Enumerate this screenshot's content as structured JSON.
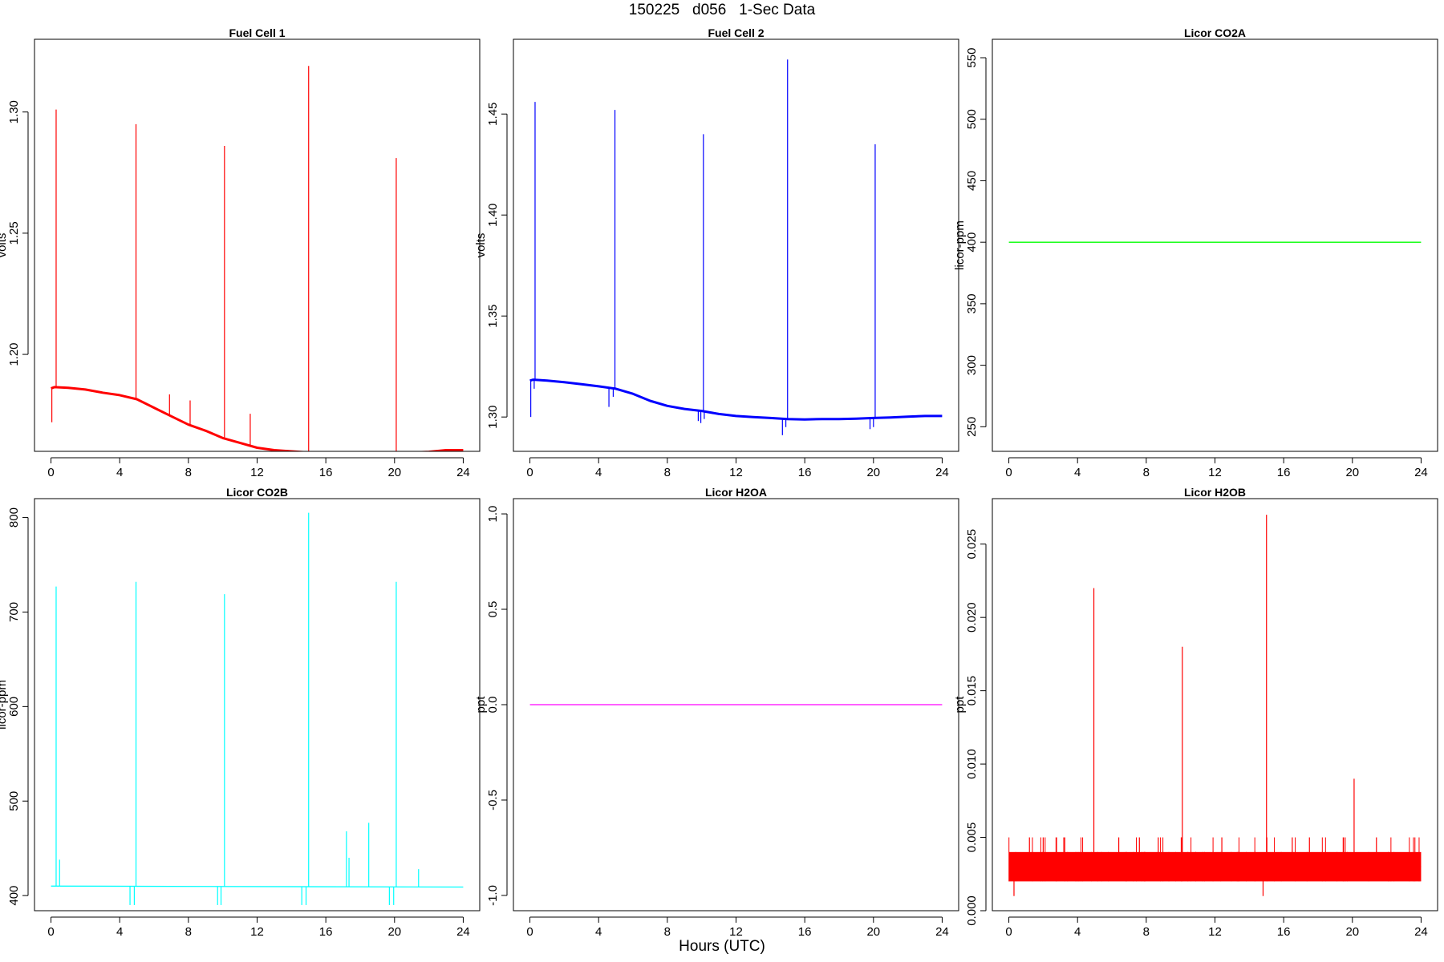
{
  "figure": {
    "title": "150225   d056   1-Sec Data",
    "xlabel": "Hours (UTC)"
  },
  "chart_data": [
    {
      "type": "line",
      "title": "Fuel Cell 1",
      "ylabel": "volts",
      "color": "#ff0000",
      "xlim": [
        -0.96,
        24.96
      ],
      "ylim": [
        1.16,
        1.33
      ],
      "xticks": [
        0,
        4,
        8,
        12,
        16,
        20,
        24
      ],
      "yticks": [
        1.2,
        1.25,
        1.3
      ],
      "ytick_labels": [
        "1.20",
        "1.25",
        "1.30"
      ],
      "baseline": {
        "x": [
          0,
          0.2,
          1,
          2,
          3,
          4,
          5,
          6,
          7,
          8,
          9,
          10,
          11,
          12,
          13,
          14,
          15,
          16,
          17,
          18,
          19,
          20,
          21,
          22,
          23,
          24
        ],
        "y": [
          1.186,
          1.1865,
          1.1862,
          1.1855,
          1.1842,
          1.1832,
          1.1815,
          1.178,
          1.1745,
          1.171,
          1.1685,
          1.1655,
          1.1635,
          1.1615,
          1.1605,
          1.16,
          1.1595,
          1.1595,
          1.1595,
          1.159,
          1.159,
          1.1592,
          1.1595,
          1.1598,
          1.1605,
          1.1605
        ]
      },
      "spikes": [
        {
          "x": 0.3,
          "y": 1.301
        },
        {
          "x": 4.95,
          "y": 1.295
        },
        {
          "x": 6.9,
          "y": 1.1835
        },
        {
          "x": 8.1,
          "y": 1.181
        },
        {
          "x": 10.1,
          "y": 1.286
        },
        {
          "x": 11.6,
          "y": 1.1755
        },
        {
          "x": 15.0,
          "y": 1.319
        },
        {
          "x": 20.1,
          "y": 1.281
        }
      ],
      "dips": [
        {
          "x": 0.05,
          "y": 1.172
        }
      ]
    },
    {
      "type": "line",
      "title": "Fuel Cell 2",
      "ylabel": "volts",
      "color": "#0000ff",
      "xlim": [
        -0.96,
        24.96
      ],
      "ylim": [
        1.283,
        1.487
      ],
      "xticks": [
        0,
        4,
        8,
        12,
        16,
        20,
        24
      ],
      "yticks": [
        1.3,
        1.35,
        1.4,
        1.45
      ],
      "ytick_labels": [
        "1.30",
        "1.35",
        "1.40",
        "1.45"
      ],
      "baseline": {
        "x": [
          0,
          0.2,
          1,
          2,
          3,
          4,
          5,
          6,
          7,
          8,
          9,
          10,
          11,
          12,
          13,
          14,
          15,
          16,
          17,
          18,
          19,
          20,
          21,
          22,
          23,
          24
        ],
        "y": [
          1.318,
          1.3185,
          1.318,
          1.3172,
          1.3162,
          1.3152,
          1.314,
          1.3115,
          1.308,
          1.3055,
          1.304,
          1.303,
          1.3015,
          1.3005,
          1.3,
          1.2995,
          1.299,
          1.2988,
          1.299,
          1.299,
          1.2992,
          1.2995,
          1.2998,
          1.3002,
          1.3005,
          1.3005
        ]
      },
      "spikes": [
        {
          "x": 0.3,
          "y": 1.456
        },
        {
          "x": 4.95,
          "y": 1.452
        },
        {
          "x": 10.1,
          "y": 1.44
        },
        {
          "x": 15.0,
          "y": 1.477
        },
        {
          "x": 20.1,
          "y": 1.435
        }
      ],
      "dips": [
        {
          "x": 0.05,
          "y": 1.3
        },
        {
          "x": 0.25,
          "y": 1.314
        },
        {
          "x": 4.6,
          "y": 1.305
        },
        {
          "x": 4.85,
          "y": 1.31
        },
        {
          "x": 9.8,
          "y": 1.298
        },
        {
          "x": 9.95,
          "y": 1.297
        },
        {
          "x": 10.15,
          "y": 1.299
        },
        {
          "x": 14.7,
          "y": 1.291
        },
        {
          "x": 14.9,
          "y": 1.295
        },
        {
          "x": 19.8,
          "y": 1.294
        },
        {
          "x": 20.0,
          "y": 1.295
        }
      ]
    },
    {
      "type": "line",
      "title": "Licor CO2A",
      "ylabel": "licor-ppm",
      "color": "#00ff00",
      "xlim": [
        -0.96,
        24.96
      ],
      "ylim": [
        230,
        565
      ],
      "xticks": [
        0,
        4,
        8,
        12,
        16,
        20,
        24
      ],
      "yticks": [
        250,
        300,
        350,
        400,
        450,
        500,
        550
      ],
      "ytick_labels": [
        "250",
        "300",
        "350",
        "400",
        "450",
        "500",
        "550"
      ],
      "baseline": {
        "x": [
          0,
          24
        ],
        "y": [
          400,
          400
        ]
      },
      "spikes": [],
      "dips": []
    },
    {
      "type": "line",
      "title": "Licor CO2B",
      "ylabel": "licor-ppm",
      "color": "#00ffff",
      "xlim": [
        -0.96,
        24.96
      ],
      "ylim": [
        384,
        820
      ],
      "xticks": [
        0,
        4,
        8,
        12,
        16,
        20,
        24
      ],
      "yticks": [
        400,
        500,
        600,
        700,
        800
      ],
      "ytick_labels": [
        "400",
        "500",
        "600",
        "700",
        "800"
      ],
      "baseline": {
        "x": [
          0,
          24
        ],
        "y": [
          410,
          409
        ]
      },
      "spikes": [
        {
          "x": 0.3,
          "y": 727
        },
        {
          "x": 0.5,
          "y": 438
        },
        {
          "x": 4.95,
          "y": 732
        },
        {
          "x": 10.1,
          "y": 719
        },
        {
          "x": 15.0,
          "y": 805
        },
        {
          "x": 17.2,
          "y": 468
        },
        {
          "x": 17.35,
          "y": 440
        },
        {
          "x": 18.5,
          "y": 477
        },
        {
          "x": 20.1,
          "y": 732
        },
        {
          "x": 21.4,
          "y": 428
        }
      ],
      "dips": [
        {
          "x": 4.6,
          "y": 390
        },
        {
          "x": 4.85,
          "y": 390
        },
        {
          "x": 9.7,
          "y": 390
        },
        {
          "x": 9.9,
          "y": 390
        },
        {
          "x": 14.6,
          "y": 390
        },
        {
          "x": 14.85,
          "y": 390
        },
        {
          "x": 19.7,
          "y": 390
        },
        {
          "x": 19.95,
          "y": 390
        }
      ]
    },
    {
      "type": "line",
      "title": "Licor H2OA",
      "ylabel": "ppt",
      "color": "#ff00ff",
      "xlim": [
        -0.96,
        24.96
      ],
      "ylim": [
        -1.08,
        1.08
      ],
      "xticks": [
        0,
        4,
        8,
        12,
        16,
        20,
        24
      ],
      "yticks": [
        -1.0,
        -0.5,
        0.0,
        0.5,
        1.0
      ],
      "ytick_labels": [
        "-1.0",
        "-0.5",
        "0.0",
        "0.5",
        "1.0"
      ],
      "baseline": {
        "x": [
          0,
          24
        ],
        "y": [
          0,
          0
        ]
      },
      "spikes": [],
      "dips": []
    },
    {
      "type": "line",
      "title": "Licor H2OB",
      "ylabel": "ppt",
      "color": "#ff0000",
      "xlim": [
        -0.96,
        24.96
      ],
      "ylim": [
        0,
        0.0281
      ],
      "xticks": [
        0,
        4,
        8,
        12,
        16,
        20,
        24
      ],
      "yticks": [
        0.0,
        0.005,
        0.01,
        0.015,
        0.02,
        0.025
      ],
      "ytick_labels": [
        "0.000",
        "0.005",
        "0.010",
        "0.015",
        "0.020",
        "0.025"
      ],
      "band": {
        "x": [
          0,
          24
        ],
        "low": 0.002,
        "high": 0.004
      },
      "baseline": {
        "x": [
          0,
          24
        ],
        "y": [
          0.003,
          0.003
        ]
      },
      "spikes": [
        {
          "x": 1.2,
          "y": 0.005
        },
        {
          "x": 2.0,
          "y": 0.005
        },
        {
          "x": 3.2,
          "y": 0.005
        },
        {
          "x": 4.95,
          "y": 0.022
        },
        {
          "x": 6.4,
          "y": 0.005
        },
        {
          "x": 7.6,
          "y": 0.005
        },
        {
          "x": 8.7,
          "y": 0.005
        },
        {
          "x": 10.1,
          "y": 0.018
        },
        {
          "x": 12.4,
          "y": 0.005
        },
        {
          "x": 15.0,
          "y": 0.027
        },
        {
          "x": 16.5,
          "y": 0.005
        },
        {
          "x": 17.5,
          "y": 0.005
        },
        {
          "x": 20.1,
          "y": 0.009
        },
        {
          "x": 21.4,
          "y": 0.005
        }
      ],
      "dips": [
        {
          "x": 0.3,
          "y": 0.001
        },
        {
          "x": 14.8,
          "y": 0.001
        }
      ]
    }
  ]
}
